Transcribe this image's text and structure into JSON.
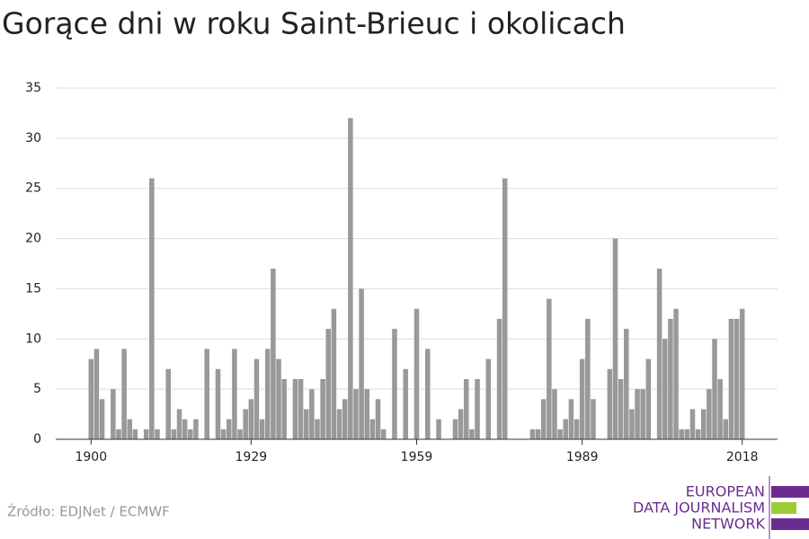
{
  "chart_data": {
    "type": "bar",
    "title": "Gorące dni w roku Saint-Brieuc i okolicach",
    "x": [
      1900,
      1901,
      1902,
      1903,
      1904,
      1905,
      1906,
      1907,
      1908,
      1909,
      1910,
      1911,
      1912,
      1913,
      1914,
      1915,
      1916,
      1917,
      1918,
      1919,
      1920,
      1921,
      1922,
      1923,
      1924,
      1925,
      1926,
      1927,
      1928,
      1929,
      1930,
      1931,
      1932,
      1933,
      1934,
      1935,
      1936,
      1937,
      1938,
      1939,
      1940,
      1941,
      1942,
      1943,
      1944,
      1945,
      1946,
      1947,
      1948,
      1949,
      1950,
      1951,
      1952,
      1953,
      1954,
      1955,
      1956,
      1957,
      1958,
      1959,
      1960,
      1961,
      1962,
      1963,
      1964,
      1965,
      1966,
      1967,
      1968,
      1969,
      1970,
      1971,
      1972,
      1973,
      1974,
      1975,
      1976,
      1977,
      1978,
      1979,
      1980,
      1981,
      1982,
      1983,
      1984,
      1985,
      1986,
      1987,
      1988,
      1989,
      1990,
      1991,
      1992,
      1993,
      1994,
      1995,
      1996,
      1997,
      1998,
      1999,
      2000,
      2001,
      2002,
      2003,
      2004,
      2005,
      2006,
      2007,
      2008,
      2009,
      2010,
      2011,
      2012,
      2013,
      2014,
      2015,
      2016,
      2017,
      2018
    ],
    "values": [
      8,
      9,
      4,
      0,
      5,
      1,
      9,
      2,
      1,
      0,
      1,
      26,
      1,
      0,
      7,
      1,
      3,
      2,
      1,
      2,
      0,
      9,
      0,
      7,
      1,
      2,
      9,
      1,
      3,
      4,
      8,
      2,
      9,
      17,
      8,
      6,
      0,
      6,
      6,
      3,
      5,
      2,
      6,
      11,
      13,
      3,
      4,
      32,
      5,
      15,
      5,
      2,
      4,
      1,
      0,
      11,
      0,
      7,
      0,
      13,
      0,
      9,
      0,
      2,
      0,
      0,
      2,
      3,
      6,
      1,
      6,
      0,
      8,
      0,
      12,
      26,
      0,
      0,
      0,
      0,
      1,
      1,
      4,
      14,
      5,
      1,
      2,
      4,
      2,
      8,
      12,
      4,
      0,
      0,
      7,
      20,
      6,
      11,
      3,
      5,
      5,
      8,
      0,
      17,
      10,
      12,
      13,
      1,
      1,
      3,
      1,
      3,
      5,
      10,
      6,
      2,
      12,
      12,
      13
    ],
    "color": "#999999",
    "xlim": [
      1893.6,
      2024.4
    ],
    "xticks": [
      1900,
      1929,
      1959,
      1989,
      2018
    ],
    "ylim": [
      0,
      35
    ],
    "yticks": [
      0,
      5,
      10,
      15,
      20,
      25,
      30,
      35
    ],
    "grid": true
  },
  "footer": {
    "source": "Źródło: EDJNet / ECMWF",
    "logo": [
      "EUROPEAN",
      "DATA JOURNALISM",
      "NETWORK"
    ]
  }
}
